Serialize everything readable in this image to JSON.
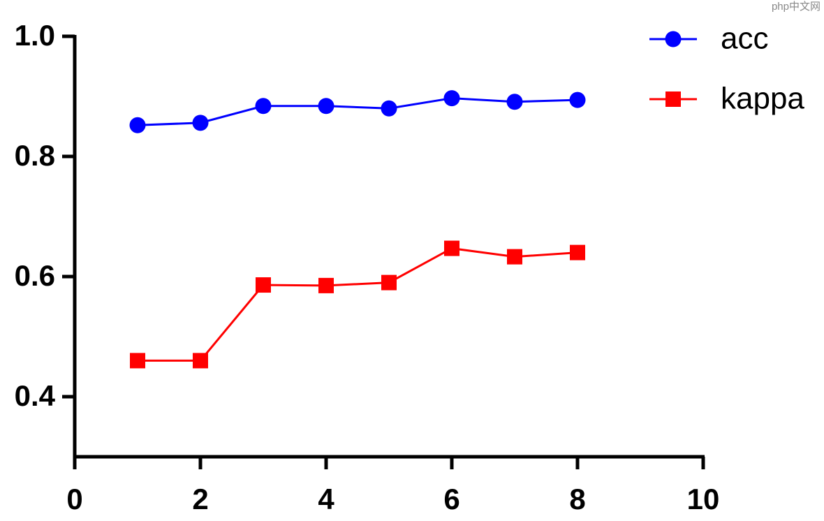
{
  "chart_data": {
    "type": "line",
    "x": [
      1,
      2,
      3,
      4,
      5,
      6,
      7,
      8
    ],
    "series": [
      {
        "name": "acc",
        "color": "#0000ff",
        "marker": "circle",
        "values": [
          0.852,
          0.856,
          0.884,
          0.884,
          0.88,
          0.897,
          0.891,
          0.894
        ]
      },
      {
        "name": "kappa",
        "color": "#ff0000",
        "marker": "square",
        "values": [
          0.46,
          0.46,
          0.586,
          0.585,
          0.59,
          0.647,
          0.633,
          0.64
        ]
      }
    ],
    "xlim": [
      0,
      10
    ],
    "xticks": [
      0,
      2,
      4,
      6,
      8,
      10
    ],
    "ylim": [
      0.3,
      1.0
    ],
    "yticks": [
      0.4,
      0.6,
      0.8,
      {
        "value": 1.0,
        "label": "1.0"
      }
    ],
    "grid": false,
    "legend": "top-right"
  },
  "watermark": "php中文网"
}
